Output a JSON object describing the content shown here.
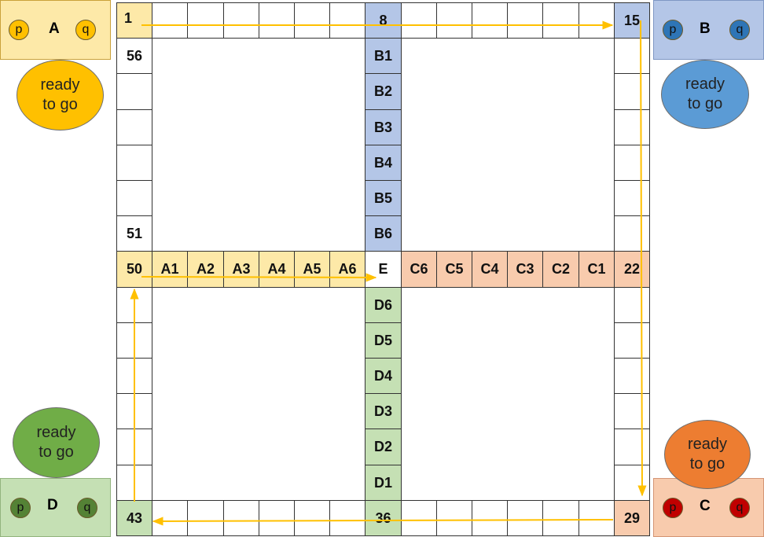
{
  "colors": {
    "A": "#fde9a8",
    "B": "#b4c6e7",
    "C": "#f8cbad",
    "D": "#c5e0b4",
    "A_token": "#ffc000",
    "B_token": "#2e75b6",
    "C_token": "#c00000",
    "D_token": "#548235",
    "A_ready": "#ffc000",
    "B_ready": "#5b9bd5",
    "C_ready": "#ed7d31",
    "D_ready": "#70ad47",
    "arrow": "#ffc000"
  },
  "track_labels": {
    "c1": "1",
    "c8": "8",
    "c15": "15",
    "c22": "22",
    "c29": "29",
    "c36": "36",
    "c43": "43",
    "c50": "50",
    "c51": "51",
    "c56": "56"
  },
  "home_lanes": {
    "A": [
      "A1",
      "A2",
      "A3",
      "A4",
      "A5",
      "A6"
    ],
    "B": [
      "B1",
      "B2",
      "B3",
      "B4",
      "B5",
      "B6"
    ],
    "C": [
      "C6",
      "C5",
      "C4",
      "C3",
      "C2",
      "C1"
    ],
    "D": [
      "D6",
      "D5",
      "D4",
      "D3",
      "D2",
      "D1"
    ]
  },
  "center_label": "E",
  "players": [
    {
      "id": "A",
      "name": "A",
      "tokens": [
        "p",
        "q"
      ],
      "ready_text": "ready\nto go"
    },
    {
      "id": "B",
      "name": "B",
      "tokens": [
        "p",
        "q"
      ],
      "ready_text": "ready\nto go"
    },
    {
      "id": "C",
      "name": "C",
      "tokens": [
        "p",
        "q"
      ],
      "ready_text": "ready\nto go"
    },
    {
      "id": "D",
      "name": "D",
      "tokens": [
        "p",
        "q"
      ],
      "ready_text": "ready\nto go"
    }
  ]
}
